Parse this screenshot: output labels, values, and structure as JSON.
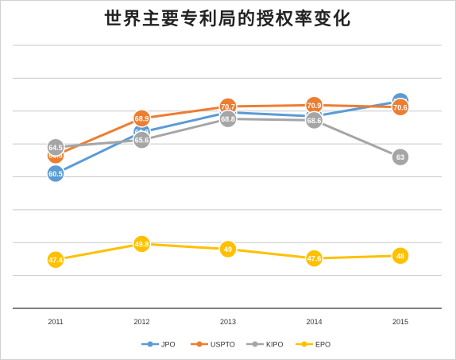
{
  "chart_data": {
    "type": "line",
    "title": "世界主要专利局的授权率变化",
    "categories": [
      "2011",
      "2012",
      "2013",
      "2014",
      "2015"
    ],
    "ylim": [
      40,
      80
    ],
    "grid": true,
    "legend_position": "bottom",
    "series": [
      {
        "name": "JPO",
        "color": "#5B9BD5",
        "values": [
          60.5,
          66.8,
          69.8,
          69.2,
          71.5
        ],
        "labels": [
          "60.5",
          "66.8",
          "69.8",
          "69.2",
          "71.5"
        ]
      },
      {
        "name": "USPTO",
        "color": "#ED7D31",
        "values": [
          63.3,
          68.9,
          70.7,
          70.9,
          70.6
        ],
        "labels": [
          "63.3",
          "68.9",
          "70.7",
          "70.9",
          "70.6"
        ]
      },
      {
        "name": "KIPO",
        "color": "#A5A5A5",
        "values": [
          64.5,
          65.6,
          68.8,
          68.6,
          63
        ],
        "labels": [
          "64.5",
          "65.6",
          "68.8",
          "68.6",
          "63"
        ]
      },
      {
        "name": "EPO",
        "color": "#FFC000",
        "values": [
          47.4,
          49.8,
          49,
          47.6,
          48
        ],
        "labels": [
          "47.4",
          "49.8",
          "49",
          "47.6",
          "48"
        ]
      }
    ]
  }
}
